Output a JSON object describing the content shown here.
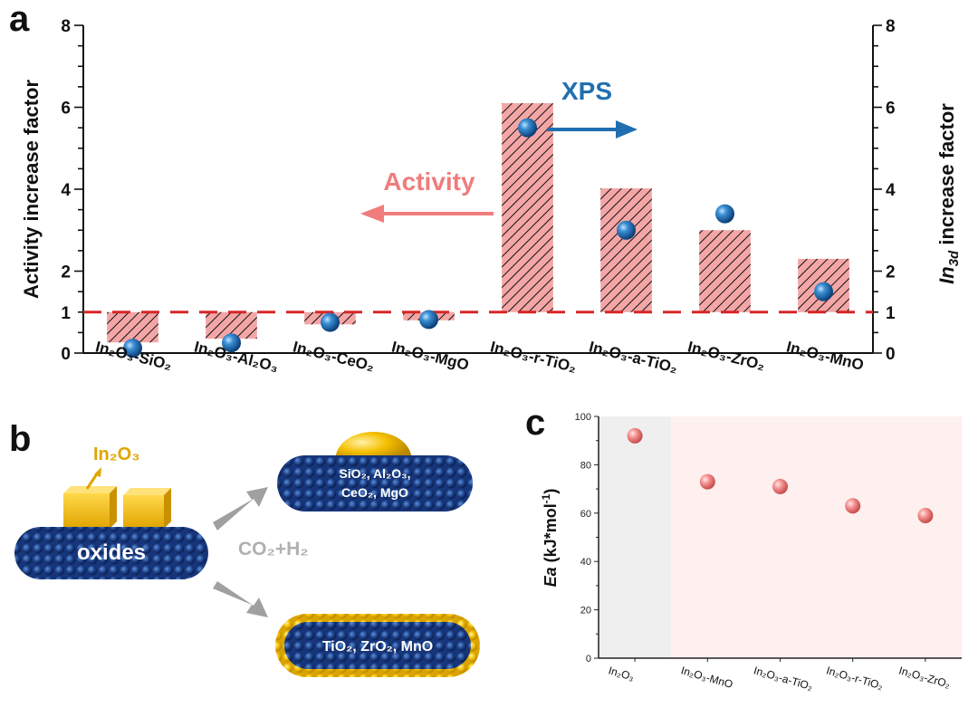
{
  "panel_labels": {
    "a": "a",
    "b": "b",
    "c": "c"
  },
  "chart_data": [
    {
      "type": "bar",
      "panel": "a",
      "categories": [
        "In₂O₃-SiO₂",
        "In₂O₃-Al₂O₃",
        "In₂O₃-CeO₂",
        "In₂O₃-MgO",
        "In₂O₃-r-TiO₂",
        "In₂O₃-a-TiO₂",
        "In₂O₃-ZrO₂",
        "In₂O₃-MnO"
      ],
      "series": [
        {
          "name": "Activity",
          "kind": "bar",
          "axis": "left",
          "baseline": 1,
          "values": [
            0.26,
            0.35,
            0.7,
            0.8,
            6.1,
            4.02,
            3.0,
            2.3
          ],
          "color": "#f4a6a6",
          "hatch": "#111111"
        },
        {
          "name": "XPS",
          "kind": "scatter",
          "axis": "right",
          "values": [
            0.12,
            0.25,
            0.75,
            0.82,
            5.5,
            3.0,
            3.4,
            1.5
          ],
          "color": "#1f6fb0"
        }
      ],
      "ylabel": "Activity increase factor",
      "y2label": "In3d increase factor",
      "y2label_italic_part": "In",
      "y2label_sub": "3d",
      "y2label_rest": " increase factor",
      "ylim": [
        0,
        8
      ],
      "y2lim": [
        0,
        8
      ],
      "yticks": [
        "0",
        "1",
        "2",
        "4",
        "6",
        "8"
      ],
      "reference_line": {
        "value": 1,
        "color": "#d62728",
        "style": "dashed"
      },
      "annotations": {
        "activity": "Activity",
        "xps": "XPS"
      },
      "colors": {
        "activity_arrow": "#f07c7c",
        "xps_arrow": "#1f6fb0"
      }
    },
    {
      "type": "scatter",
      "panel": "c",
      "categories": [
        "In₂O₃",
        "In₂O₃-MnO",
        "In₂O₃-a-TiO₂",
        "In₂O₃-r-TiO₂",
        "In₂O₃-ZrO₂"
      ],
      "values": [
        92,
        73,
        71,
        63,
        59
      ],
      "ylabel": "Ea (kJ*mol⁻¹)",
      "ylabel_italic": "Ea",
      "ylabel_rest": " (kJ*mol",
      "ylabel_sup": "-1",
      "ylabel_close": ")",
      "ylim": [
        0,
        100
      ],
      "yticks": [
        "0",
        "20",
        "40",
        "60",
        "80",
        "100"
      ],
      "background": {
        "first_region": "#efefef",
        "rest_region": "#fdf0ef"
      },
      "marker_color": "#f28b8b"
    }
  ],
  "diagram_b": {
    "in2o3_label": "In₂O₃",
    "oxides_label": "oxides",
    "gas_label": "CO₂+H₂",
    "top_support_line1": "SiO₂, Al₂O₃,",
    "top_support_line2": "CeO₂, MgO",
    "bottom_support": "TiO₂,  ZrO₂, MnO",
    "colors": {
      "particle": "#f5b800",
      "support": "#1c3f86",
      "arrow": "#a0a0a0",
      "gas": "#b0b0b0"
    }
  }
}
